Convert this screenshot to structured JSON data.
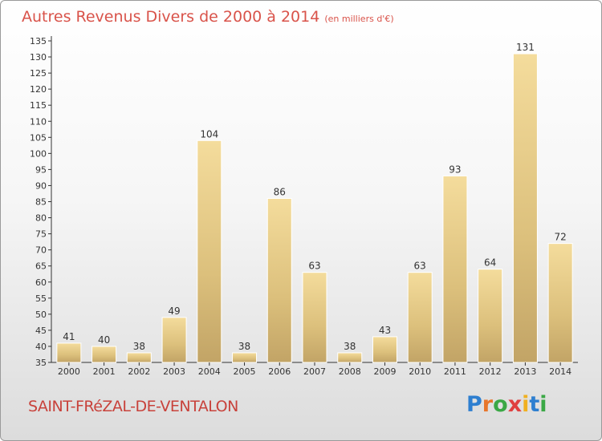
{
  "chart_data": {
    "type": "bar",
    "title": "Autres Revenus Divers de 2000 à 2014",
    "subtitle": "(en milliers d'€)",
    "categories": [
      "2000",
      "2001",
      "2002",
      "2003",
      "2004",
      "2005",
      "2006",
      "2007",
      "2008",
      "2009",
      "2010",
      "2011",
      "2012",
      "2013",
      "2014"
    ],
    "values": [
      41,
      40,
      38,
      49,
      104,
      38,
      86,
      63,
      38,
      43,
      63,
      93,
      64,
      131,
      72
    ],
    "ylim": [
      35,
      135
    ],
    "ytick_step": 5,
    "grid": false,
    "bar_color": "#e8c880"
  },
  "footer": {
    "place_name": "SAINT-FRéZAL-DE-VENTALON",
    "logo_text": "Proxiti",
    "logo_colors": [
      "#2e7fd0",
      "#e8762a",
      "#3aa845",
      "#e04040",
      "#f0b020",
      "#2e7fd0",
      "#3aa845"
    ]
  }
}
